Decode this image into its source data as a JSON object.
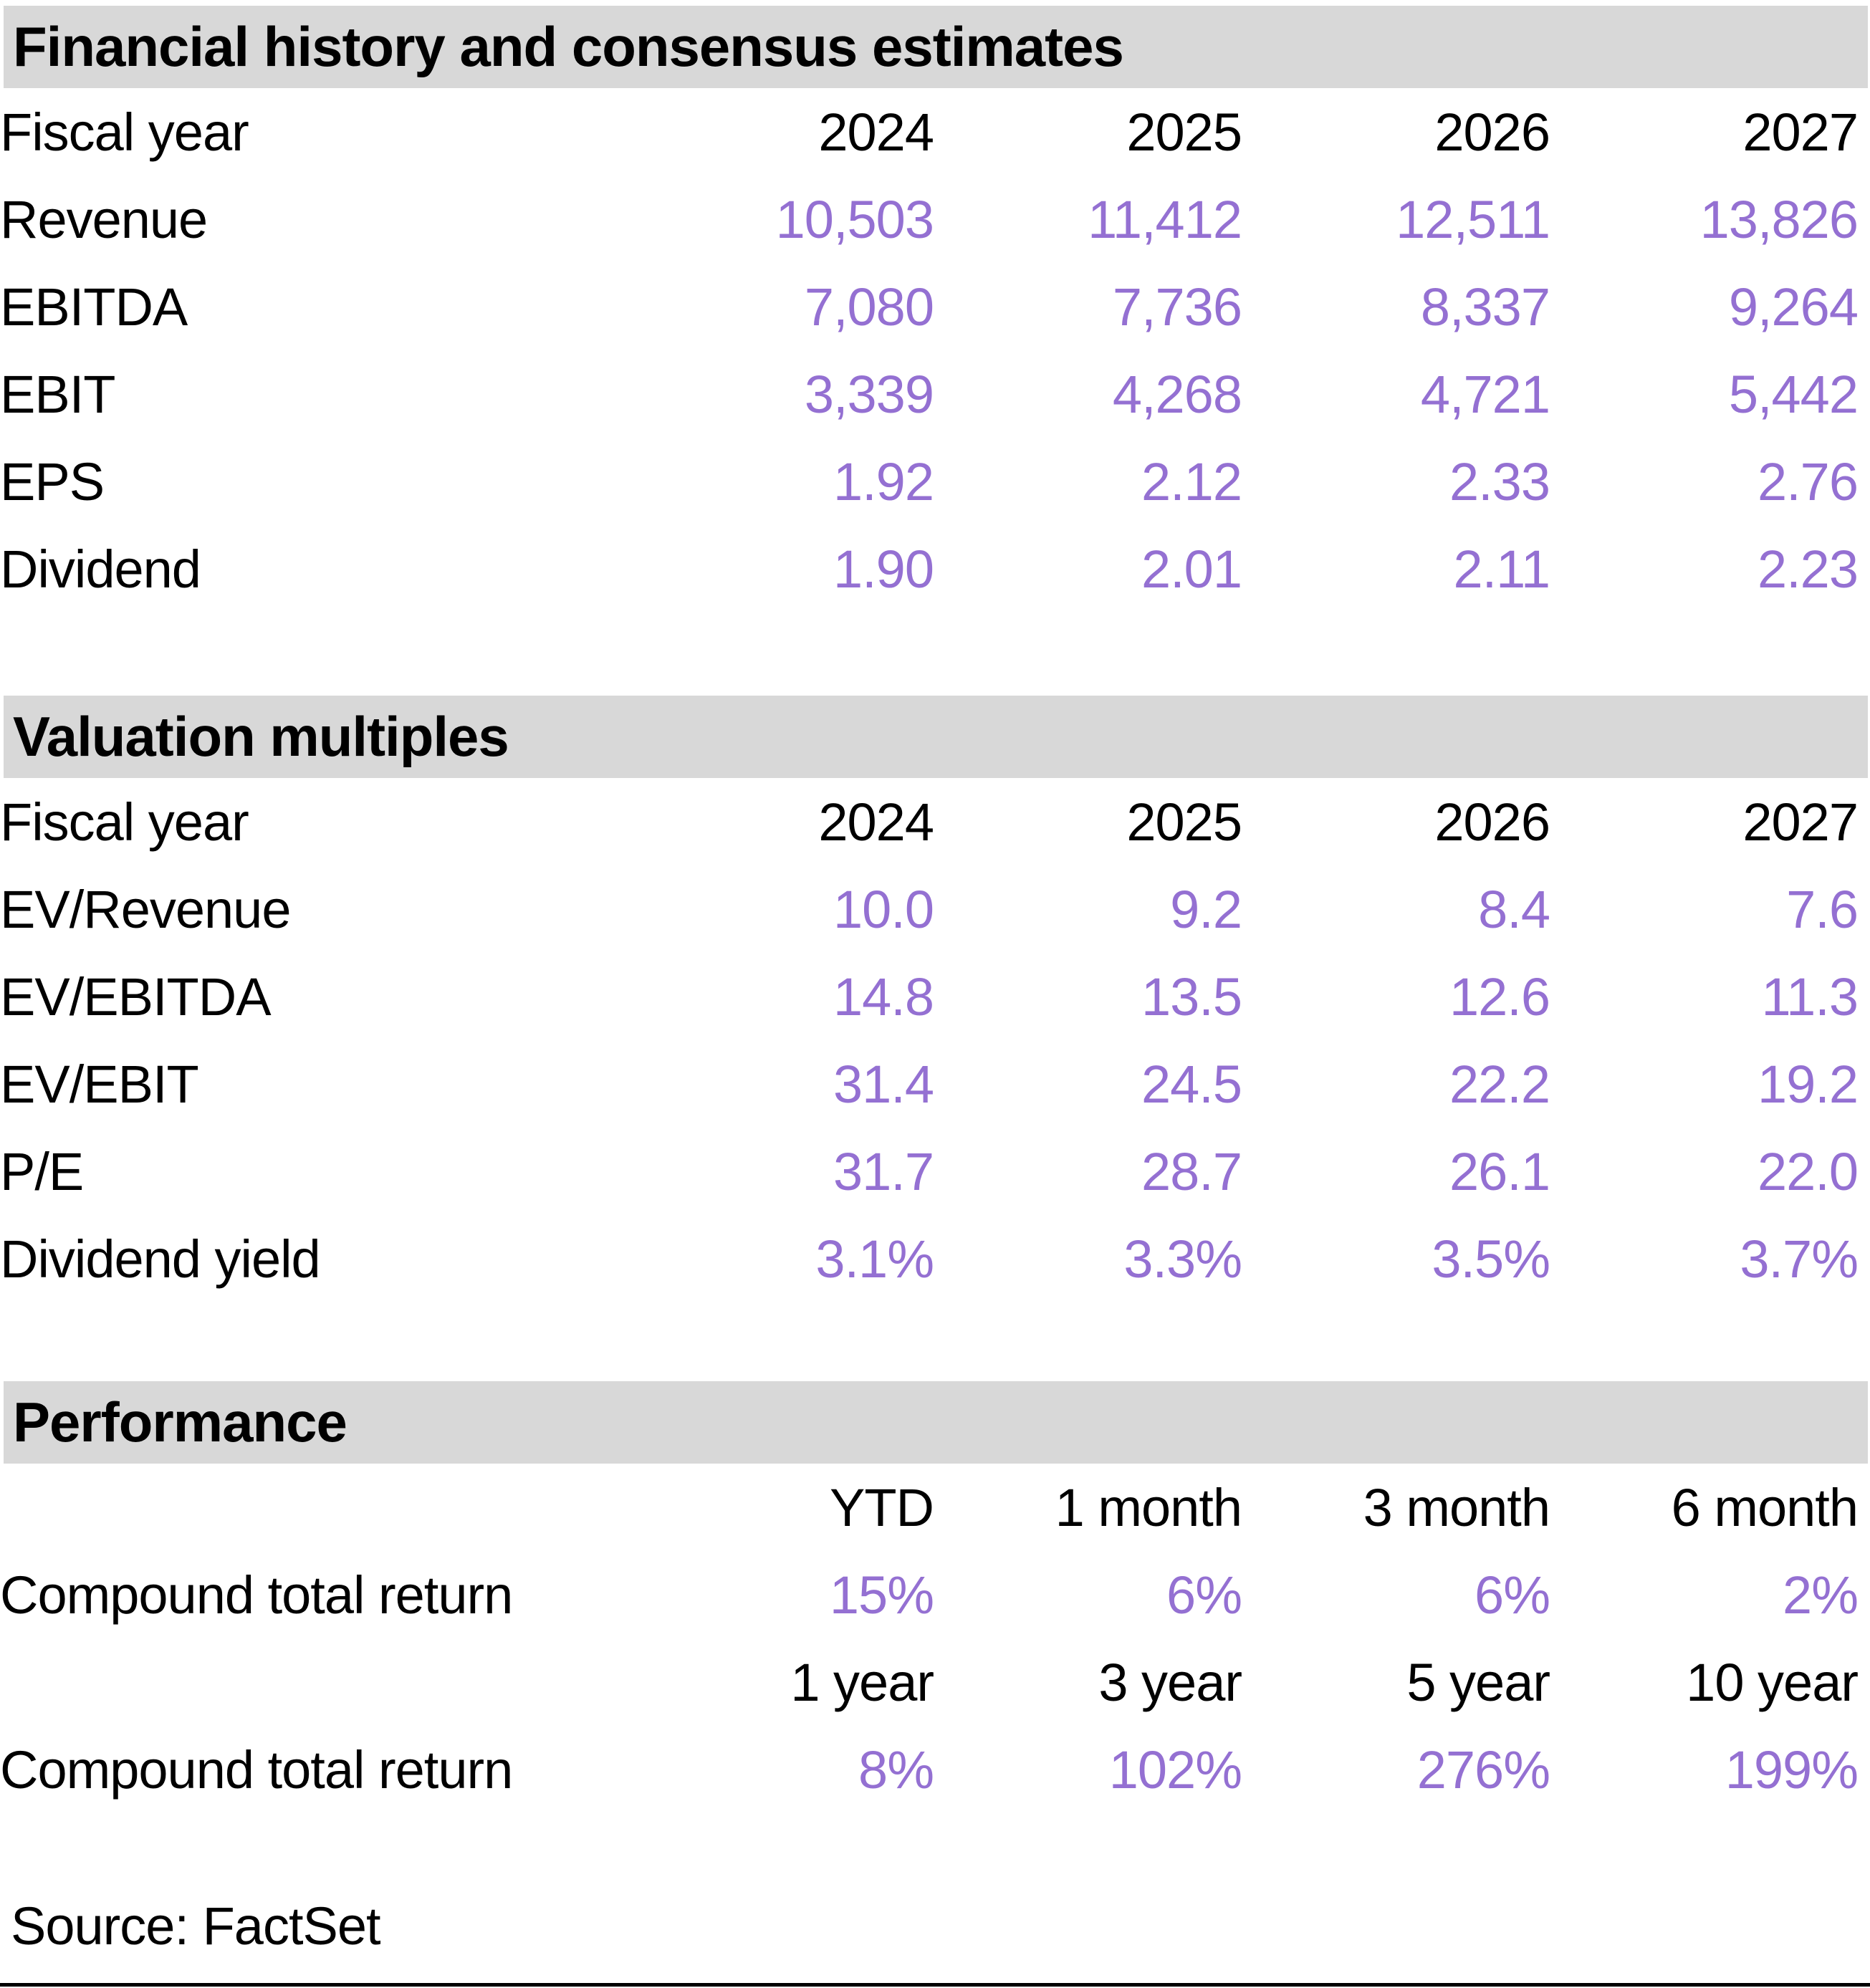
{
  "colors": {
    "accent_purple": "#9470D2",
    "header_band_gray": "#D8D8D8",
    "text_black": "#000000"
  },
  "sections": [
    {
      "title": "Financial history and consensus estimates",
      "header_row": {
        "label": "Fiscal year",
        "cols": [
          "2024",
          "2025",
          "2026",
          "2027"
        ]
      },
      "rows": [
        {
          "label": "Revenue",
          "values": [
            "10,503",
            "11,412",
            "12,511",
            "13,826"
          ]
        },
        {
          "label": "EBITDA",
          "values": [
            "7,080",
            "7,736",
            "8,337",
            "9,264"
          ]
        },
        {
          "label": "EBIT",
          "values": [
            "3,339",
            "4,268",
            "4,721",
            "5,442"
          ]
        },
        {
          "label": "EPS",
          "values": [
            "1.92",
            "2.12",
            "2.33",
            "2.76"
          ]
        },
        {
          "label": "Dividend",
          "values": [
            "1.90",
            "2.01",
            "2.11",
            "2.23"
          ]
        }
      ]
    },
    {
      "title": "Valuation multiples",
      "header_row": {
        "label": "Fiscal year",
        "cols": [
          "2024",
          "2025",
          "2026",
          "2027"
        ]
      },
      "rows": [
        {
          "label": "EV/Revenue",
          "values": [
            "10.0",
            "9.2",
            "8.4",
            "7.6"
          ]
        },
        {
          "label": "EV/EBITDA",
          "values": [
            "14.8",
            "13.5",
            "12.6",
            "11.3"
          ]
        },
        {
          "label": "EV/EBIT",
          "values": [
            "31.4",
            "24.5",
            "22.2",
            "19.2"
          ]
        },
        {
          "label": "P/E",
          "values": [
            "31.7",
            "28.7",
            "26.1",
            "22.0"
          ]
        },
        {
          "label": "Dividend yield",
          "values": [
            "3.1%",
            "3.3%",
            "3.5%",
            "3.7%"
          ]
        }
      ]
    },
    {
      "title": "Performance",
      "groups": [
        {
          "header_cols": [
            "YTD",
            "1 month",
            "3 month",
            "6 month"
          ],
          "row": {
            "label": "Compound total return",
            "values": [
              "15%",
              "6%",
              "6%",
              "2%"
            ]
          }
        },
        {
          "header_cols": [
            "1 year",
            "3 year",
            "5 year",
            "10 year"
          ],
          "row": {
            "label": "Compound total return",
            "values": [
              "8%",
              "102%",
              "276%",
              "199%"
            ]
          }
        }
      ]
    }
  ],
  "source_note": "Source: FactSet"
}
